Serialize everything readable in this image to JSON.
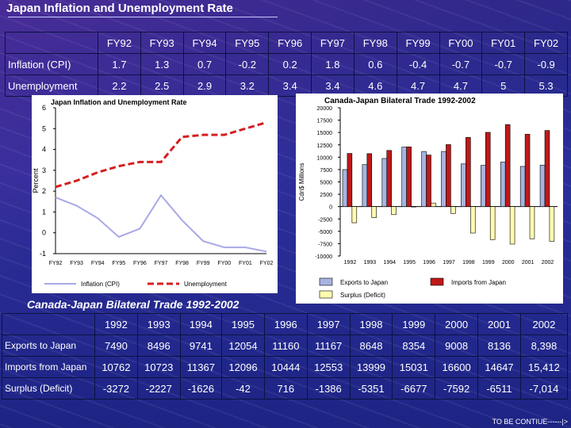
{
  "title": "Japan Inflation and Unemployment Rate",
  "inflation_table": {
    "headers": [
      "",
      "FY92",
      "FY93",
      "FY94",
      "FY95",
      "FY96",
      "FY97",
      "FY98",
      "FY99",
      "FY00",
      "FY01",
      "FY02"
    ],
    "rows": [
      {
        "label": "Inflation (CPI)",
        "values": [
          "1.7",
          "1.3",
          "0.7",
          "-0.2",
          "0.2",
          "1.8",
          "0.6",
          "-0.4",
          "-0.7",
          "-0.7",
          "-0.9"
        ]
      },
      {
        "label": "Unemployment",
        "values": [
          "2.2",
          "2.5",
          "2.9",
          "3.2",
          "3.4",
          "3.4",
          "4.6",
          "4.7",
          "4.7",
          "5",
          "5.3"
        ]
      }
    ]
  },
  "trade_section_title": "Canada-Japan Bilateral Trade 1992-2002",
  "trade_table": {
    "headers": [
      "",
      "1992",
      "1993",
      "1994",
      "1995",
      "1996",
      "1997",
      "1998",
      "1999",
      "2000",
      "2001",
      "2002"
    ],
    "rows": [
      {
        "label": "Exports to Japan",
        "values": [
          "7490",
          "8496",
          "9741",
          "12054",
          "11160",
          "11167",
          "8648",
          "8354",
          "9008",
          "8136",
          "8,398"
        ]
      },
      {
        "label": "Imports from Japan",
        "values": [
          "10762",
          "10723",
          "11367",
          "12096",
          "10444",
          "12553",
          "13999",
          "15031",
          "16600",
          "14647",
          "15,412"
        ]
      },
      {
        "label": "Surplus (Deficit)",
        "values": [
          "-3272",
          "-2227",
          "-1626",
          "-42",
          "716",
          "-1386",
          "-5351",
          "-6677",
          "-7592",
          "-6511",
          "-7,014"
        ]
      }
    ]
  },
  "continue_text": "TO BE CONTIUE------|>",
  "chart_data": [
    {
      "type": "line",
      "title": "Japan Inflation and Unemployment Rate",
      "ylabel": "Percent",
      "xlabel": "",
      "categories": [
        "FY92",
        "FY93",
        "FY94",
        "FY95",
        "FY96",
        "FY97",
        "FY98",
        "FY99",
        "FY00",
        "FY01",
        "FY02"
      ],
      "series": [
        {
          "name": "Inflation (CPI)",
          "color": "#a8a8e8",
          "dashed": false,
          "values": [
            1.7,
            1.3,
            0.7,
            -0.2,
            0.2,
            1.8,
            0.6,
            -0.4,
            -0.7,
            -0.7,
            -0.9
          ]
        },
        {
          "name": "Unemployment",
          "color": "#d42020",
          "dashed": true,
          "values": [
            2.2,
            2.5,
            2.9,
            3.2,
            3.4,
            3.4,
            4.6,
            4.7,
            4.7,
            5.0,
            5.3
          ]
        }
      ],
      "ylim": [
        -1,
        6
      ],
      "yticks": [
        -1,
        0,
        1,
        2,
        3,
        4,
        5,
        6
      ],
      "grid": false,
      "legend": "bottom"
    },
    {
      "type": "bar",
      "title": "Canada-Japan Bilateral Trade 1992-2002",
      "ylabel": "Cdn$ Millions",
      "xlabel": "",
      "categories": [
        "1992",
        "1993",
        "1994",
        "1995",
        "1996",
        "1997",
        "1998",
        "1999",
        "2000",
        "2001",
        "2002"
      ],
      "series": [
        {
          "name": "Exports to Japan",
          "color": "#a8b4e0",
          "values": [
            7490,
            8496,
            9741,
            12054,
            11160,
            11167,
            8648,
            8354,
            9008,
            8136,
            8398
          ]
        },
        {
          "name": "Imports from Japan",
          "color": "#c01818",
          "values": [
            10762,
            10723,
            11367,
            12096,
            10444,
            12553,
            13999,
            15031,
            16600,
            14647,
            15412
          ]
        },
        {
          "name": "Surplus (Deficit)",
          "color": "#fffbb0",
          "values": [
            -3272,
            -2227,
            -1626,
            -42,
            716,
            -1386,
            -5351,
            -6677,
            -7592,
            -6511,
            -7014
          ]
        }
      ],
      "ylim": [
        -10000,
        20000
      ],
      "yticks": [
        -10000,
        -7500,
        -5000,
        -2500,
        0,
        2500,
        5000,
        7500,
        10000,
        12500,
        15000,
        17500,
        20000
      ],
      "ytick_labels": [
        "-10000",
        "-7500",
        "-5000",
        "-2500",
        "0",
        "2500",
        "5000",
        "7500",
        "10000",
        "12500",
        "15000",
        "17500",
        "20000"
      ],
      "grid": false,
      "legend": "bottom"
    }
  ]
}
